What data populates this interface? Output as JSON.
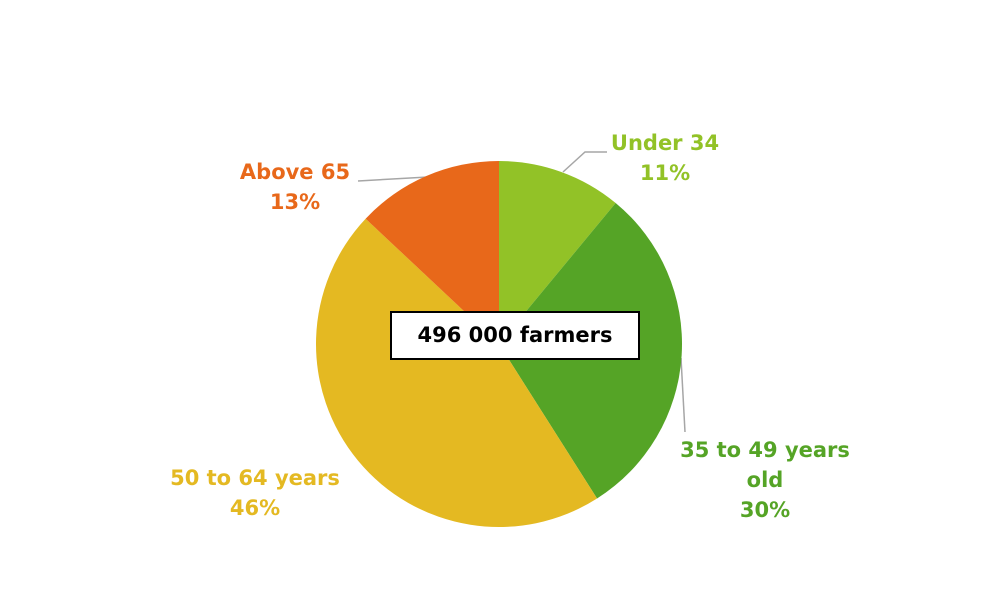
{
  "chart_data": {
    "type": "pie",
    "annotation": "496 000 farmers",
    "categories": [
      "Under 34",
      "35 to 49 years old",
      "50 to 64 years",
      "Above 65"
    ],
    "values": [
      11,
      30,
      46,
      13
    ],
    "value_labels": [
      "11%",
      "30%",
      "46%",
      "13%"
    ],
    "colors": [
      "#92c227",
      "#55a426",
      "#e4b922",
      "#e8681a"
    ]
  }
}
